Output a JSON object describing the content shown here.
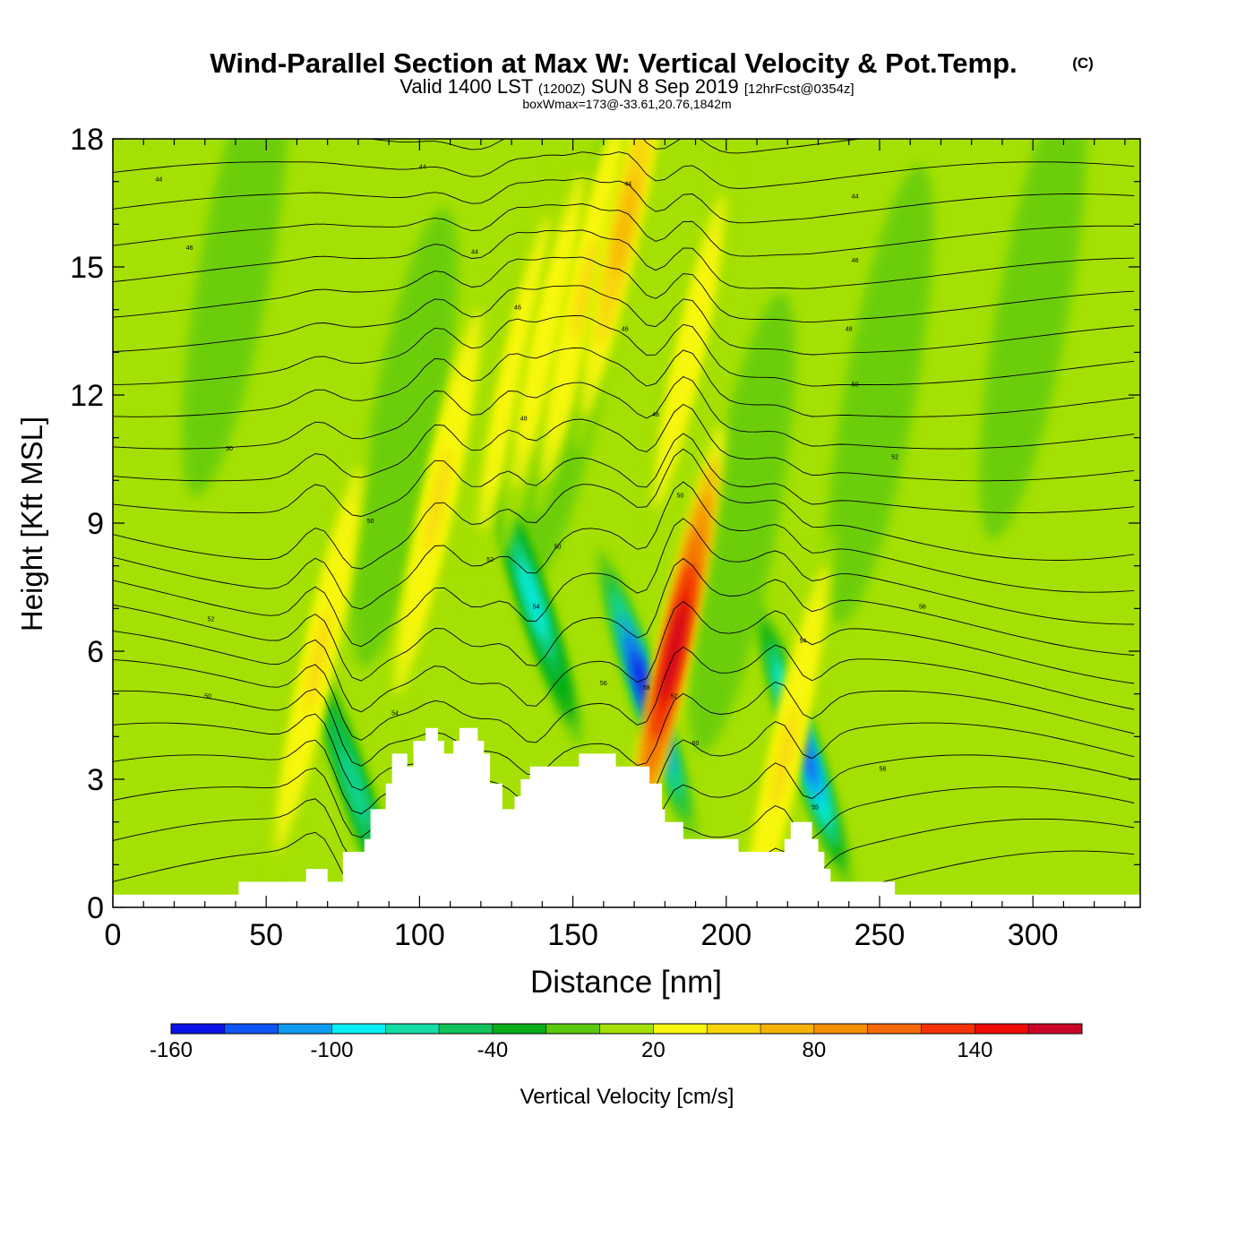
{
  "header": {
    "title": "Wind-Parallel Section at Max W: Vertical Velocity & Pot.Temp.",
    "copyright": "(C)",
    "valid_prefix": "Valid 1400 LST",
    "valid_utc": "(1200Z)",
    "valid_date": "SUN 8 Sep 2019",
    "valid_fcst": "[12hrFcst@0354z]",
    "box_info": "boxWmax=173@-33.61,20.76,1842m"
  },
  "colorbar": {
    "label": "Vertical Velocity [cm/s]",
    "colors": [
      "#0a13e6",
      "#0d55f5",
      "#0e9cf0",
      "#05f0f5",
      "#14dca6",
      "#10c25a",
      "#06ad18",
      "#5ac90e",
      "#a4e003",
      "#f8f70d",
      "#f8d308",
      "#f5b203",
      "#f59002",
      "#f56a05",
      "#f53205",
      "#f00a05",
      "#cc0428"
    ],
    "tick_labels": [
      "-160",
      "-100",
      "-40",
      "20",
      "80",
      "140"
    ],
    "tick_values": [
      -160,
      -100,
      -40,
      20,
      80,
      140
    ],
    "range": [
      -160,
      180
    ]
  },
  "chart_data": {
    "type": "heatmap",
    "title": "Wind-Parallel Section at Max W: Vertical Velocity & Pot.Temp.",
    "xlabel": "Distance [nm]",
    "ylabel": "Height [Kft MSL]",
    "xlim": [
      0,
      335
    ],
    "ylim": [
      0,
      18
    ],
    "x_ticks": [
      0,
      50,
      100,
      150,
      200,
      250,
      300
    ],
    "y_ticks": [
      0,
      3,
      6,
      9,
      12,
      15,
      18
    ],
    "x_tick_labels": [
      "0",
      "50",
      "100",
      "150",
      "200",
      "250",
      "300"
    ],
    "y_tick_labels": [
      "0",
      "3",
      "6",
      "9",
      "12",
      "15",
      "18"
    ],
    "background_w": 10,
    "terrain": [
      [
        0,
        0.3
      ],
      [
        41,
        0.3
      ],
      [
        41,
        0.6
      ],
      [
        63,
        0.6
      ],
      [
        63,
        0.9
      ],
      [
        70,
        0.9
      ],
      [
        70,
        0.6
      ],
      [
        75,
        0.6
      ],
      [
        75,
        1.3
      ],
      [
        82,
        1.3
      ],
      [
        82,
        1.6
      ],
      [
        84,
        1.6
      ],
      [
        84,
        2.3
      ],
      [
        89,
        2.3
      ],
      [
        89,
        2.9
      ],
      [
        91,
        2.9
      ],
      [
        91,
        3.6
      ],
      [
        96,
        3.6
      ],
      [
        96,
        3.3
      ],
      [
        98,
        3.3
      ],
      [
        98,
        3.9
      ],
      [
        102,
        3.9
      ],
      [
        102,
        4.2
      ],
      [
        106,
        4.2
      ],
      [
        106,
        3.9
      ],
      [
        108,
        3.9
      ],
      [
        108,
        3.6
      ],
      [
        111,
        3.6
      ],
      [
        111,
        3.9
      ],
      [
        113,
        3.9
      ],
      [
        113,
        4.2
      ],
      [
        119,
        4.2
      ],
      [
        119,
        3.9
      ],
      [
        121,
        3.9
      ],
      [
        121,
        3.6
      ],
      [
        123,
        3.6
      ],
      [
        123,
        2.9
      ],
      [
        127,
        2.9
      ],
      [
        127,
        2.3
      ],
      [
        131,
        2.3
      ],
      [
        131,
        2.6
      ],
      [
        133,
        2.6
      ],
      [
        133,
        3.0
      ],
      [
        136,
        3.0
      ],
      [
        136,
        3.3
      ],
      [
        152,
        3.3
      ],
      [
        152,
        3.6
      ],
      [
        164,
        3.6
      ],
      [
        164,
        3.3
      ],
      [
        175,
        3.3
      ],
      [
        175,
        2.9
      ],
      [
        179,
        2.9
      ],
      [
        179,
        2.3
      ],
      [
        180,
        2.3
      ],
      [
        180,
        2.0
      ],
      [
        186,
        2.0
      ],
      [
        186,
        1.6
      ],
      [
        204,
        1.6
      ],
      [
        204,
        1.3
      ],
      [
        219,
        1.3
      ],
      [
        219,
        1.6
      ],
      [
        221,
        1.6
      ],
      [
        221,
        2.0
      ],
      [
        228,
        2.0
      ],
      [
        228,
        1.6
      ],
      [
        230,
        1.6
      ],
      [
        230,
        1.3
      ],
      [
        232,
        1.3
      ],
      [
        232,
        0.9
      ],
      [
        234,
        0.9
      ],
      [
        234,
        0.6
      ],
      [
        255,
        0.6
      ],
      [
        255,
        0.3
      ],
      [
        335,
        0.3
      ]
    ],
    "updrafts": [
      {
        "x": 67,
        "z": 5.8,
        "w": 40
      },
      {
        "x": 106,
        "z": 9.5,
        "w": 45
      },
      {
        "x": 131,
        "z": 12.5,
        "w": 30
      },
      {
        "x": 142,
        "z": 13.5,
        "w": 35
      },
      {
        "x": 154,
        "z": 14.5,
        "w": 40
      },
      {
        "x": 167,
        "z": 16.0,
        "w": 60
      },
      {
        "x": 183,
        "z": 6.0,
        "w": 173
      },
      {
        "x": 188,
        "z": 13.0,
        "w": 30
      },
      {
        "x": 219,
        "z": 3.5,
        "w": 45
      }
    ],
    "downdrafts": [
      {
        "x": 79,
        "z": 2.8,
        "w": -70
      },
      {
        "x": 137,
        "z": 7.2,
        "w": -90
      },
      {
        "x": 174,
        "z": 5.0,
        "w": -160
      },
      {
        "x": 225,
        "z": 3.8,
        "w": -140
      }
    ],
    "theta_labels": [
      {
        "x": 15,
        "z": 17.0,
        "text": "44"
      },
      {
        "x": 25,
        "z": 15.4,
        "text": "46"
      },
      {
        "x": 101,
        "z": 17.3,
        "text": "44"
      },
      {
        "x": 118,
        "z": 15.3,
        "text": "44"
      },
      {
        "x": 132,
        "z": 14.0,
        "text": "46"
      },
      {
        "x": 134,
        "z": 11.4,
        "text": "48"
      },
      {
        "x": 168,
        "z": 16.9,
        "text": "44"
      },
      {
        "x": 167,
        "z": 13.5,
        "text": "46"
      },
      {
        "x": 177,
        "z": 11.5,
        "text": "48"
      },
      {
        "x": 185,
        "z": 9.6,
        "text": "50"
      },
      {
        "x": 145,
        "z": 8.4,
        "text": "50"
      },
      {
        "x": 123,
        "z": 8.1,
        "text": "52"
      },
      {
        "x": 138,
        "z": 7.0,
        "text": "54"
      },
      {
        "x": 160,
        "z": 5.2,
        "text": "56"
      },
      {
        "x": 174,
        "z": 5.1,
        "text": "58"
      },
      {
        "x": 183,
        "z": 4.9,
        "text": "52"
      },
      {
        "x": 190,
        "z": 3.8,
        "text": "60"
      },
      {
        "x": 38,
        "z": 10.7,
        "text": "50"
      },
      {
        "x": 84,
        "z": 9.0,
        "text": "50"
      },
      {
        "x": 32,
        "z": 6.7,
        "text": "52"
      },
      {
        "x": 31,
        "z": 4.9,
        "text": "50"
      },
      {
        "x": 92,
        "z": 4.5,
        "text": "54"
      },
      {
        "x": 242,
        "z": 16.6,
        "text": "44"
      },
      {
        "x": 242,
        "z": 15.1,
        "text": "46"
      },
      {
        "x": 240,
        "z": 13.5,
        "text": "48"
      },
      {
        "x": 242,
        "z": 12.2,
        "text": "50"
      },
      {
        "x": 255,
        "z": 10.5,
        "text": "52"
      },
      {
        "x": 264,
        "z": 7.0,
        "text": "56"
      },
      {
        "x": 225,
        "z": 6.2,
        "text": "54"
      },
      {
        "x": 251,
        "z": 3.2,
        "text": "58"
      },
      {
        "x": 229,
        "z": 2.3,
        "text": "55"
      }
    ]
  }
}
